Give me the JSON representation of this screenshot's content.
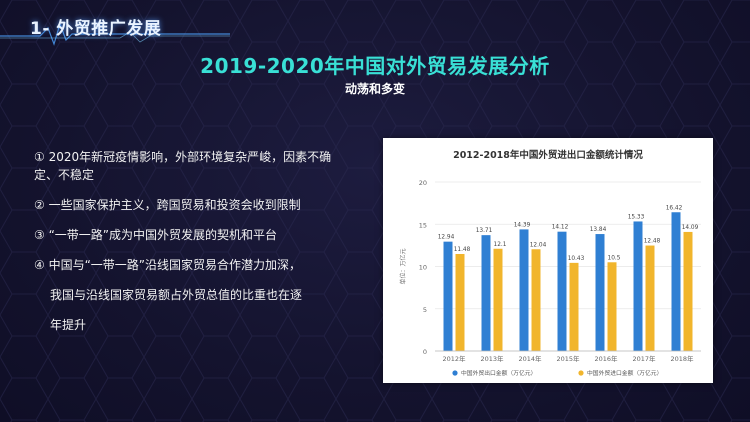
{
  "section": {
    "title": "1- 外贸推广发展"
  },
  "slide": {
    "title": "2019-2020年中国对外贸易发展分析",
    "subtitle": "动荡和多变"
  },
  "bullets": [
    {
      "text": "① 2020年新冠疫情影响，外部环境复杂严峻，因素不确定、不稳定"
    },
    {
      "text": "② 一些国家保护主义，跨国贸易和投资会收到限制"
    },
    {
      "text": "③ “一带一路”成为中国外贸发展的契机和平台"
    },
    {
      "text": "④ 中国与“一带一路”沿线国家贸易合作潜力加深，",
      "cont1": "我国与沿线国家贸易额占外贸总值的比重也在逐",
      "cont2": "年提升"
    }
  ],
  "colors": {
    "export": "#2f7fd3",
    "import": "#f1b52c",
    "accent": "#39e0d6"
  },
  "chart_data": {
    "type": "bar",
    "title": "2012-2018年中国外贸进出口金额统计情况",
    "ylabel": "单位：万亿元",
    "xlabel": "",
    "categories": [
      "2012年",
      "2013年",
      "2014年",
      "2015年",
      "2016年",
      "2017年",
      "2018年"
    ],
    "ylim": [
      0,
      20
    ],
    "yticks": [
      0,
      5,
      10,
      15,
      20
    ],
    "grid": true,
    "legend": "bottom",
    "series": [
      {
        "name": "中国外贸出口金额（万亿元）",
        "values": [
          12.94,
          13.71,
          14.39,
          14.12,
          13.84,
          15.33,
          16.42
        ],
        "labels": [
          "12.94",
          "13.71",
          "14.39",
          "14.12",
          "13.84",
          "15.33",
          "16.42"
        ]
      },
      {
        "name": "中国外贸进口金额（万亿元）",
        "values": [
          11.48,
          12.1,
          12.04,
          10.43,
          10.5,
          12.48,
          14.09
        ],
        "labels": [
          "11.48",
          "12.1",
          "12.04",
          "10.43",
          "10.5",
          "12.48",
          "14.09"
        ]
      }
    ]
  }
}
